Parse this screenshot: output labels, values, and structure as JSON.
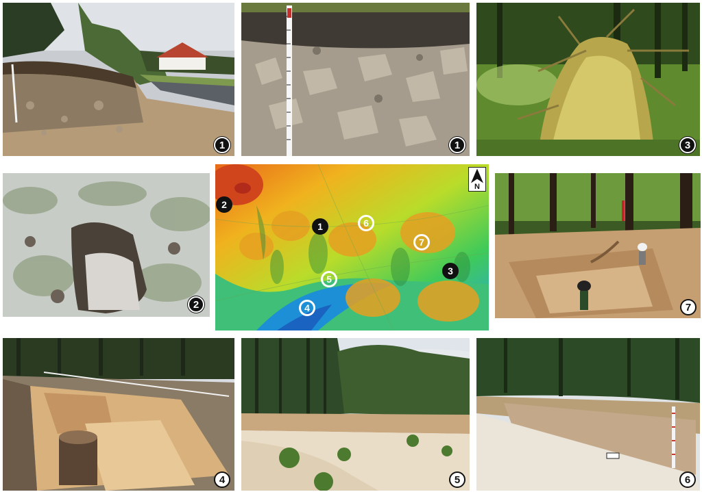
{
  "panels": [
    {
      "id": "p1",
      "badge": "1",
      "badge_style": "dark",
      "scene": "roadside outcrop with house, measuring pole"
    },
    {
      "id": "p2",
      "badge": "1",
      "badge_style": "dark",
      "scene": "limestone rubble profile with measuring rod"
    },
    {
      "id": "p3",
      "badge": "3",
      "badge_style": "dark",
      "scene": "uprooted tree root plate in forest"
    },
    {
      "id": "p4",
      "badge": "2",
      "badge_style": "dark",
      "scene": "pale sandy soil pit with grass"
    },
    {
      "id": "p5",
      "badge": "7",
      "badge_style": "light",
      "scene": "excavation trench in forest with workers"
    },
    {
      "id": "p6",
      "badge": "4",
      "badge_style": "light",
      "scene": "stepped sand excavation with tree stump"
    },
    {
      "id": "p7",
      "badge": "5",
      "badge_style": "light",
      "scene": "large sand quarry below pine forest"
    },
    {
      "id": "p8",
      "badge": "6",
      "badge_style": "light",
      "scene": "long sandy trench with measuring rod"
    }
  ],
  "map": {
    "north_label": "N",
    "markers": [
      {
        "label": "2",
        "style": "dark"
      },
      {
        "label": "1",
        "style": "dark"
      },
      {
        "label": "6",
        "style": "light"
      },
      {
        "label": "7",
        "style": "light"
      },
      {
        "label": "3",
        "style": "dark"
      },
      {
        "label": "5",
        "style": "light"
      },
      {
        "label": "4",
        "style": "light"
      }
    ]
  }
}
